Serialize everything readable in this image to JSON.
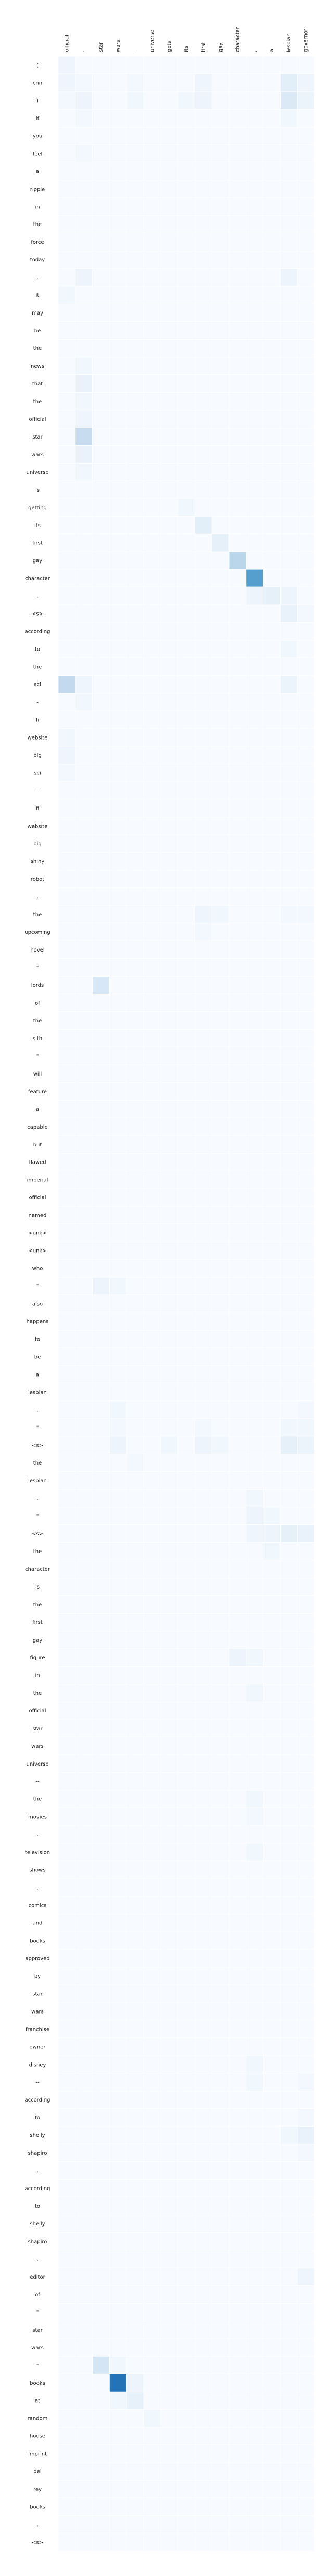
{
  "chart_data": {
    "type": "heatmap",
    "title": "",
    "xlabel": "",
    "ylabel": "",
    "colormap": [
      "#f7fbff",
      "#deebf7",
      "#c6dbef",
      "#9ecae1",
      "#6baed6",
      "#4292c6",
      "#2171b5",
      "#08519c"
    ],
    "grid_color": "#ffffff",
    "x_labels": [
      "official",
      "-",
      "star",
      "wars",
      "-",
      "universe",
      "gets",
      "its",
      "first",
      "gay",
      "character",
      ",",
      "a",
      "lesbian",
      "governor"
    ],
    "y_labels": [
      "(",
      "cnn",
      ")",
      "if",
      "you",
      "feel",
      "a",
      "ripple",
      "in",
      "the",
      "force",
      "today",
      ",",
      "it",
      "may",
      "be",
      "the",
      "news",
      "that",
      "the",
      "official",
      "star",
      "wars",
      "universe",
      "is",
      "getting",
      "its",
      "first",
      "gay",
      "character",
      ".",
      "<s>",
      "according",
      "to",
      "the",
      "sci",
      "-",
      "fi",
      "website",
      "big",
      "sci",
      "-",
      "fi",
      "website",
      "big",
      "shiny",
      "robot",
      ",",
      "the",
      "upcoming",
      "novel",
      "\"",
      "lords",
      "of",
      "the",
      "sith",
      "\"",
      "will",
      "feature",
      "a",
      "capable",
      "but",
      "flawed",
      "imperial",
      "official",
      "named",
      "<unk>",
      "<unk>",
      "who",
      "\"",
      "also",
      "happens",
      "to",
      "be",
      "a",
      "lesbian",
      ".",
      "\"",
      "<s>",
      "the",
      "lesbian",
      ".",
      "\"",
      "<s>",
      "the",
      "character",
      "is",
      "the",
      "first",
      "gay",
      "figure",
      "in",
      "the",
      "official",
      "star",
      "wars",
      "universe",
      "--",
      "the",
      "movies",
      ",",
      "television",
      "shows",
      ",",
      "comics",
      "and",
      "books",
      "approved",
      "by",
      "star",
      "wars",
      "franchise",
      "owner",
      "disney",
      "--",
      "according",
      "to",
      "shelly",
      "shapiro",
      ",",
      "according",
      "to",
      "shelly",
      "shapiro",
      ",",
      "editor",
      "of",
      "\"",
      "star",
      "wars",
      "\"",
      "books",
      "at",
      "random",
      "house",
      "imprint",
      "del",
      "rey",
      "books",
      ".",
      "<s>"
    ],
    "cells": [
      {
        "row": 0,
        "col": 0,
        "value": 0.05
      },
      {
        "row": 1,
        "col": 0,
        "value": 0.05
      },
      {
        "row": 1,
        "col": 1,
        "value": 0.03
      },
      {
        "row": 1,
        "col": 4,
        "value": 0.03
      },
      {
        "row": 1,
        "col": 8,
        "value": 0.05
      },
      {
        "row": 1,
        "col": 13,
        "value": 0.12
      },
      {
        "row": 1,
        "col": 14,
        "value": 0.05
      },
      {
        "row": 2,
        "col": 0,
        "value": 0.03
      },
      {
        "row": 2,
        "col": 1,
        "value": 0.06
      },
      {
        "row": 2,
        "col": 4,
        "value": 0.04
      },
      {
        "row": 2,
        "col": 7,
        "value": 0.04
      },
      {
        "row": 2,
        "col": 8,
        "value": 0.06
      },
      {
        "row": 2,
        "col": 13,
        "value": 0.16
      },
      {
        "row": 2,
        "col": 14,
        "value": 0.07
      },
      {
        "row": 3,
        "col": 1,
        "value": 0.03
      },
      {
        "row": 3,
        "col": 13,
        "value": 0.04
      },
      {
        "row": 5,
        "col": 1,
        "value": 0.03
      },
      {
        "row": 12,
        "col": 1,
        "value": 0.06
      },
      {
        "row": 12,
        "col": 13,
        "value": 0.06
      },
      {
        "row": 13,
        "col": 0,
        "value": 0.04
      },
      {
        "row": 17,
        "col": 1,
        "value": 0.04
      },
      {
        "row": 18,
        "col": 1,
        "value": 0.08
      },
      {
        "row": 19,
        "col": 1,
        "value": 0.04
      },
      {
        "row": 20,
        "col": 1,
        "value": 0.05
      },
      {
        "row": 21,
        "col": 1,
        "value": 0.28
      },
      {
        "row": 22,
        "col": 1,
        "value": 0.08
      },
      {
        "row": 23,
        "col": 1,
        "value": 0.04
      },
      {
        "row": 25,
        "col": 7,
        "value": 0.04
      },
      {
        "row": 26,
        "col": 8,
        "value": 0.12
      },
      {
        "row": 27,
        "col": 9,
        "value": 0.1
      },
      {
        "row": 28,
        "col": 10,
        "value": 0.33
      },
      {
        "row": 29,
        "col": 11,
        "value": 0.65
      },
      {
        "row": 30,
        "col": 11,
        "value": 0.06
      },
      {
        "row": 30,
        "col": 12,
        "value": 0.1
      },
      {
        "row": 30,
        "col": 13,
        "value": 0.06
      },
      {
        "row": 31,
        "col": 13,
        "value": 0.08
      },
      {
        "row": 31,
        "col": 14,
        "value": 0.03
      },
      {
        "row": 33,
        "col": 13,
        "value": 0.04
      },
      {
        "row": 35,
        "col": 0,
        "value": 0.3
      },
      {
        "row": 35,
        "col": 1,
        "value": 0.05
      },
      {
        "row": 35,
        "col": 13,
        "value": 0.07
      },
      {
        "row": 36,
        "col": 1,
        "value": 0.04
      },
      {
        "row": 38,
        "col": 0,
        "value": 0.04
      },
      {
        "row": 39,
        "col": 0,
        "value": 0.05
      },
      {
        "row": 40,
        "col": 0,
        "value": 0.03
      },
      {
        "row": 48,
        "col": 8,
        "value": 0.05
      },
      {
        "row": 48,
        "col": 9,
        "value": 0.04
      },
      {
        "row": 48,
        "col": 13,
        "value": 0.03
      },
      {
        "row": 48,
        "col": 14,
        "value": 0.03
      },
      {
        "row": 49,
        "col": 8,
        "value": 0.03
      },
      {
        "row": 52,
        "col": 2,
        "value": 0.18
      },
      {
        "row": 69,
        "col": 2,
        "value": 0.06
      },
      {
        "row": 69,
        "col": 3,
        "value": 0.04
      },
      {
        "row": 76,
        "col": 3,
        "value": 0.04
      },
      {
        "row": 76,
        "col": 14,
        "value": 0.03
      },
      {
        "row": 77,
        "col": 3,
        "value": 0.03
      },
      {
        "row": 77,
        "col": 8,
        "value": 0.03
      },
      {
        "row": 77,
        "col": 13,
        "value": 0.04
      },
      {
        "row": 77,
        "col": 14,
        "value": 0.04
      },
      {
        "row": 78,
        "col": 3,
        "value": 0.06
      },
      {
        "row": 78,
        "col": 6,
        "value": 0.04
      },
      {
        "row": 78,
        "col": 8,
        "value": 0.06
      },
      {
        "row": 78,
        "col": 9,
        "value": 0.04
      },
      {
        "row": 78,
        "col": 13,
        "value": 0.1
      },
      {
        "row": 78,
        "col": 14,
        "value": 0.07
      },
      {
        "row": 79,
        "col": 4,
        "value": 0.03
      },
      {
        "row": 81,
        "col": 11,
        "value": 0.04
      },
      {
        "row": 82,
        "col": 11,
        "value": 0.06
      },
      {
        "row": 82,
        "col": 12,
        "value": 0.04
      },
      {
        "row": 83,
        "col": 11,
        "value": 0.05
      },
      {
        "row": 83,
        "col": 12,
        "value": 0.06
      },
      {
        "row": 83,
        "col": 13,
        "value": 0.1
      },
      {
        "row": 83,
        "col": 14,
        "value": 0.08
      },
      {
        "row": 84,
        "col": 12,
        "value": 0.04
      },
      {
        "row": 90,
        "col": 10,
        "value": 0.06
      },
      {
        "row": 90,
        "col": 11,
        "value": 0.04
      },
      {
        "row": 92,
        "col": 11,
        "value": 0.04
      },
      {
        "row": 98,
        "col": 11,
        "value": 0.04
      },
      {
        "row": 99,
        "col": 11,
        "value": 0.03
      },
      {
        "row": 101,
        "col": 11,
        "value": 0.04
      },
      {
        "row": 113,
        "col": 11,
        "value": 0.04
      },
      {
        "row": 114,
        "col": 11,
        "value": 0.04
      },
      {
        "row": 114,
        "col": 14,
        "value": 0.03
      },
      {
        "row": 116,
        "col": 14,
        "value": 0.03
      },
      {
        "row": 117,
        "col": 13,
        "value": 0.04
      },
      {
        "row": 117,
        "col": 14,
        "value": 0.08
      },
      {
        "row": 118,
        "col": 14,
        "value": 0.03
      },
      {
        "row": 125,
        "col": 14,
        "value": 0.05
      },
      {
        "row": 130,
        "col": 2,
        "value": 0.2
      },
      {
        "row": 130,
        "col": 3,
        "value": 0.04
      },
      {
        "row": 131,
        "col": 3,
        "value": 0.85
      },
      {
        "row": 131,
        "col": 4,
        "value": 0.06
      },
      {
        "row": 132,
        "col": 3,
        "value": 0.04
      },
      {
        "row": 132,
        "col": 4,
        "value": 0.09
      },
      {
        "row": 133,
        "col": 5,
        "value": 0.04
      },
      {
        "row": 141,
        "col": 0,
        "value": 0.04
      },
      {
        "row": 141,
        "col": 1,
        "value": 0.04
      },
      {
        "row": 141,
        "col": 2,
        "value": 0.06
      },
      {
        "row": 141,
        "col": 4,
        "value": 0.14
      },
      {
        "row": 141,
        "col": 5,
        "value": 0.05
      },
      {
        "row": 141,
        "col": 6,
        "value": 0.05
      },
      {
        "row": 141,
        "col": 7,
        "value": 0.04
      },
      {
        "row": 141,
        "col": 8,
        "value": 0.04
      },
      {
        "row": 141,
        "col": 9,
        "value": 0.03
      },
      {
        "row": 141,
        "col": 10,
        "value": 0.03
      },
      {
        "row": 141,
        "col": 11,
        "value": 0.03
      },
      {
        "row": 141,
        "col": 12,
        "value": 0.04
      },
      {
        "row": 141,
        "col": 13,
        "value": 0.06
      },
      {
        "row": 141,
        "col": 14,
        "value": 0.05
      }
    ]
  }
}
